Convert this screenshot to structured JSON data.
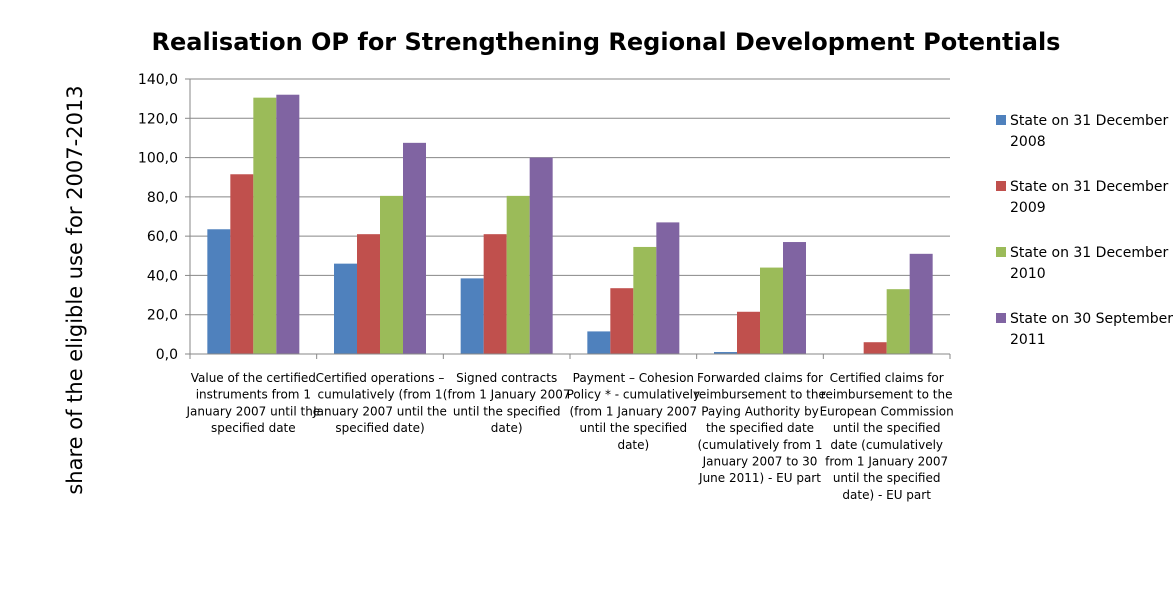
{
  "chart_data": {
    "type": "bar",
    "title": "Realisation OP for Strengthening Regional Development Potentials",
    "ylabel": "share of the eligible use for 2007-2013",
    "xlabel": "",
    "ylim": [
      0,
      140
    ],
    "ytick_step": 20,
    "ytick_labels": [
      "0,0",
      "20,0",
      "40,0",
      "60,0",
      "80,0",
      "100,0",
      "120,0",
      "140,0"
    ],
    "grid": true,
    "legend_position": "right",
    "categories": [
      [
        "Value of the certified",
        "instruments from 1",
        "January 2007 until the",
        "specified date"
      ],
      [
        "Certified operations –",
        "cumulatively (from 1",
        "January 2007 until the",
        "specified date)"
      ],
      [
        "Signed contracts",
        "(from 1 January 2007",
        "until the specified",
        "date)"
      ],
      [
        "Payment – Cohesion",
        "Policy * - cumulatively",
        "(from 1 January 2007",
        "until the specified",
        "date)"
      ],
      [
        "Forwarded claims for",
        "reimbursement to the",
        "Paying Authority by",
        "the specified date",
        "(cumulatively from 1",
        "January 2007 to 30",
        "June 2011) - EU part"
      ],
      [
        "Certified claims for",
        "reimbursement to the",
        "European Commission",
        "until the specified",
        "date (cumulatively",
        "from 1 January 2007",
        "until the specified",
        "date) - EU part"
      ]
    ],
    "series": [
      {
        "name_lines": [
          "State on 31 December",
          "2008"
        ],
        "color": "#4F81BD",
        "values": [
          63.5,
          46.0,
          38.5,
          11.5,
          1.0,
          0.0
        ]
      },
      {
        "name_lines": [
          "State on 31 December",
          "2009"
        ],
        "color": "#C0504D",
        "values": [
          91.5,
          61.0,
          61.0,
          33.5,
          21.5,
          6.0
        ]
      },
      {
        "name_lines": [
          "State on 31 December",
          "2010"
        ],
        "color": "#9BBB59",
        "values": [
          130.5,
          80.5,
          80.5,
          54.5,
          44.0,
          33.0
        ]
      },
      {
        "name_lines": [
          "State on 30 September",
          "2011"
        ],
        "color": "#8064A2",
        "values": [
          132.0,
          107.5,
          100.0,
          67.0,
          57.0,
          51.0
        ]
      }
    ]
  }
}
